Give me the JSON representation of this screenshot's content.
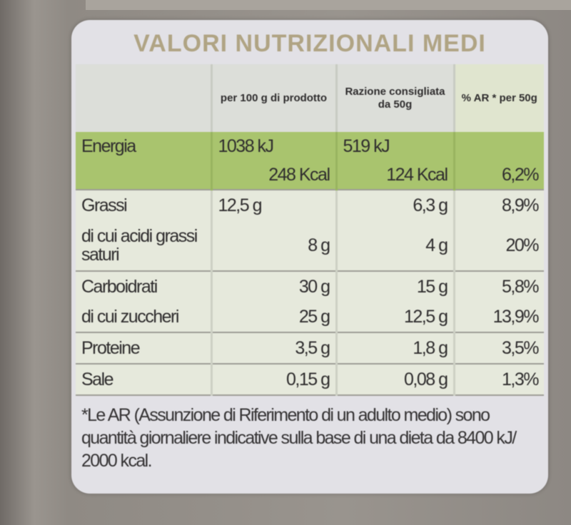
{
  "title": "VALORI NUTRIZIONALI MEDI",
  "columns": [
    "",
    "per 100 g di prodotto",
    "Razione consigliata da 50g",
    "% AR * per 50g"
  ],
  "rows": [
    {
      "name": "Energia",
      "per100": "1038 kJ",
      "per_serving": "519 kJ",
      "ar": ""
    },
    {
      "name": "",
      "per100": "248 Kcal",
      "per_serving": "124 Kcal",
      "ar": "6,2%"
    },
    {
      "name": "Grassi",
      "per100": "12,5 g",
      "per_serving": "6,3 g",
      "ar": "8,9%"
    },
    {
      "name": "di cui acidi grassi saturi",
      "per100": "8 g",
      "per_serving": "4 g",
      "ar": "20%"
    },
    {
      "name": "Carboidrati",
      "per100": "30 g",
      "per_serving": "15 g",
      "ar": "5,8%"
    },
    {
      "name": "di cui zuccheri",
      "per100": "25 g",
      "per_serving": "12,5 g",
      "ar": "13,9%"
    },
    {
      "name": "Proteine",
      "per100": "3,5 g",
      "per_serving": "1,8 g",
      "ar": "3,5%"
    },
    {
      "name": "Sale",
      "per100": "0,15 g",
      "per_serving": "0,08 g",
      "ar": "1,3%"
    }
  ],
  "footnote": "*Le AR (Assunzione di Riferimento di un adulto medio) sono quantità giornaliere indicative sulla base di una dieta da 8400 kJ/ 2000 kcal.",
  "colors": {
    "title": "#b0a484",
    "energy_band": "#a9c46e",
    "panel": "#e2e1e6"
  }
}
